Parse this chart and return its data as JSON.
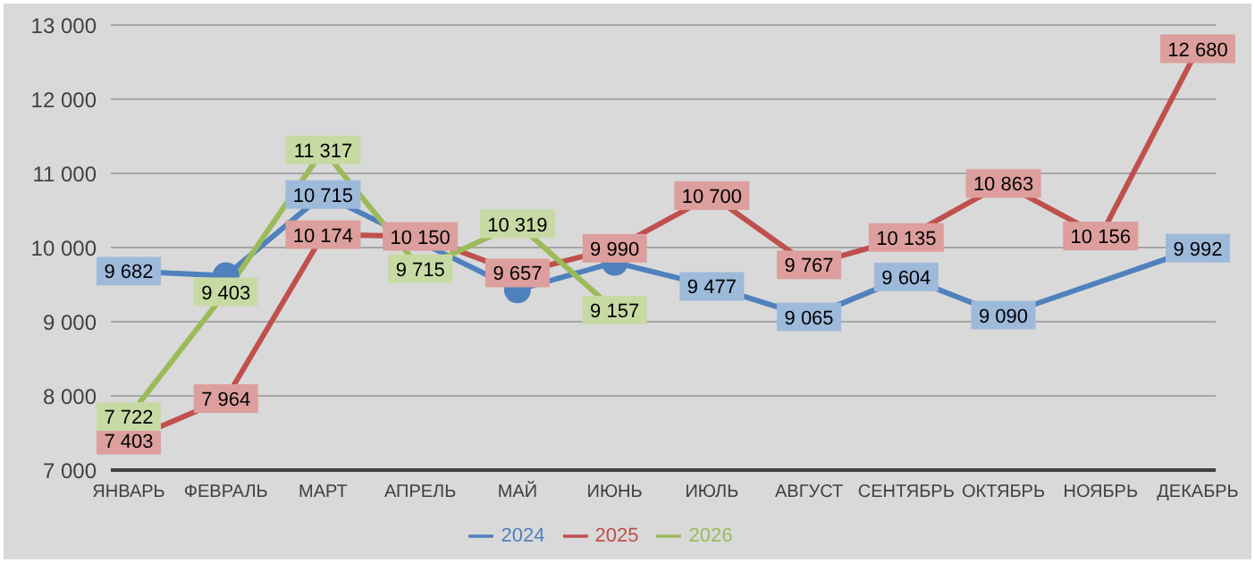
{
  "chart_data": {
    "type": "line",
    "categories": [
      "ЯНВАРЬ",
      "ФЕВРАЛЬ",
      "МАРТ",
      "АПРЕЛЬ",
      "МАЙ",
      "ИЮНЬ",
      "ИЮЛЬ",
      "АВГУСТ",
      "СЕНТЯБРЬ",
      "ОКТЯБРЬ",
      "НОЯБРЬ",
      "ДЕКАБРЬ"
    ],
    "series": [
      {
        "name": "2024",
        "color": "#4f81bd",
        "values": [
          9682,
          9620,
          10715,
          null,
          9430,
          9800,
          9477,
          9065,
          9604,
          9090,
          null,
          9992
        ],
        "value_labels": [
          "9 682",
          null,
          "10 715",
          null,
          null,
          null,
          "9 477",
          "9 065",
          "9 604",
          "9 090",
          null,
          "9 992"
        ]
      },
      {
        "name": "2025",
        "color": "#c0504d",
        "values": [
          7403,
          7964,
          10174,
          10150,
          9657,
          9990,
          10700,
          9767,
          10135,
          10863,
          10156,
          12680
        ],
        "value_labels": [
          "7 403",
          "7 964",
          "10 174",
          "10 150",
          "9 657",
          "9 990",
          "10 700",
          "9 767",
          "10 135",
          "10 863",
          "10 156",
          "12 680"
        ]
      },
      {
        "name": "2026",
        "color": "#9bbb59",
        "values": [
          7722,
          9403,
          11317,
          9715,
          10319,
          9157,
          null,
          null,
          null,
          null,
          null,
          null
        ],
        "value_labels": [
          "7 722",
          "9 403",
          "11 317",
          "9 715",
          "10 319",
          "9 157",
          null,
          null,
          null,
          null,
          null,
          null
        ]
      }
    ],
    "ylim": [
      7000,
      13000
    ],
    "yticks": [
      {
        "value": 7000,
        "label": "7 000"
      },
      {
        "value": 8000,
        "label": "8 000"
      },
      {
        "value": 9000,
        "label": "9 000"
      },
      {
        "value": 10000,
        "label": "10 000"
      },
      {
        "value": 11000,
        "label": "11 000"
      },
      {
        "value": 12000,
        "label": "12 000"
      },
      {
        "value": 13000,
        "label": "13 000"
      }
    ],
    "grid": "y",
    "legend": "bottom",
    "marker": "circle",
    "line_style": "solid"
  }
}
